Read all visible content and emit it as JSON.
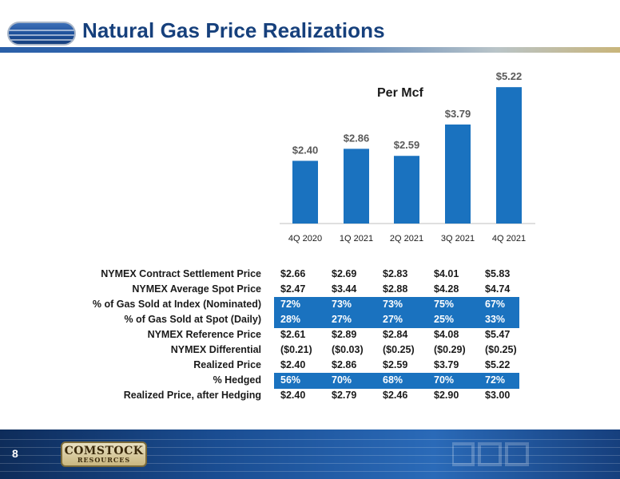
{
  "header": {
    "title": "Natural Gas Price Realizations",
    "logo_icon": "crk-logo-icon"
  },
  "chart_data": {
    "type": "bar",
    "subtitle": "Per Mcf",
    "categories": [
      "4Q 2020",
      "1Q 2021",
      "2Q 2021",
      "3Q 2021",
      "4Q 2021"
    ],
    "values": [
      2.4,
      2.86,
      2.59,
      3.79,
      5.22
    ],
    "data_labels": [
      "$2.40",
      "$2.86",
      "$2.59",
      "$3.79",
      "$5.22"
    ],
    "ylim": [
      0,
      5.5
    ],
    "grid": false,
    "bar_color": "#1a72bf",
    "xlabel": "",
    "ylabel": ""
  },
  "table": {
    "rows": [
      {
        "label": "NYMEX Contract Settlement Price",
        "values": [
          "$2.66",
          "$2.69",
          "$2.83",
          "$4.01",
          "$5.83"
        ],
        "highlight": false
      },
      {
        "label": "NYMEX Average Spot Price",
        "values": [
          "$2.47",
          "$3.44",
          "$2.88",
          "$4.28",
          "$4.74"
        ],
        "highlight": false
      },
      {
        "label": "% of Gas Sold at Index (Nominated)",
        "values": [
          "72%",
          "73%",
          "73%",
          "75%",
          "67%"
        ],
        "highlight": true
      },
      {
        "label": "% of Gas Sold at Spot (Daily)",
        "values": [
          "28%",
          "27%",
          "27%",
          "25%",
          "33%"
        ],
        "highlight": true
      },
      {
        "label": "NYMEX Reference Price",
        "values": [
          "$2.61",
          "$2.89",
          "$2.84",
          "$4.08",
          "$5.47"
        ],
        "highlight": false
      },
      {
        "label": "NYMEX Differential",
        "values": [
          "($0.21)",
          "($0.03)",
          "($0.25)",
          "($0.29)",
          "($0.25)"
        ],
        "highlight": false
      },
      {
        "label": "Realized Price",
        "values": [
          "$2.40",
          "$2.86",
          "$2.59",
          "$3.79",
          "$5.22"
        ],
        "highlight": false
      },
      {
        "label": "% Hedged",
        "values": [
          "56%",
          "70%",
          "68%",
          "70%",
          "72%"
        ],
        "highlight": true
      },
      {
        "label": "Realized Price, after Hedging",
        "values": [
          "$2.40",
          "$2.79",
          "$2.46",
          "$2.90",
          "$3.00"
        ],
        "highlight": false
      }
    ],
    "highlight_color": "#1a72bf"
  },
  "footer": {
    "page_number": "8",
    "brand_line1": "COMSTOCK",
    "brand_line2": "RESOURCES",
    "brand_icon": "comstock-resources-logo",
    "wordmark_icon": "crk-wordmark-icon"
  }
}
